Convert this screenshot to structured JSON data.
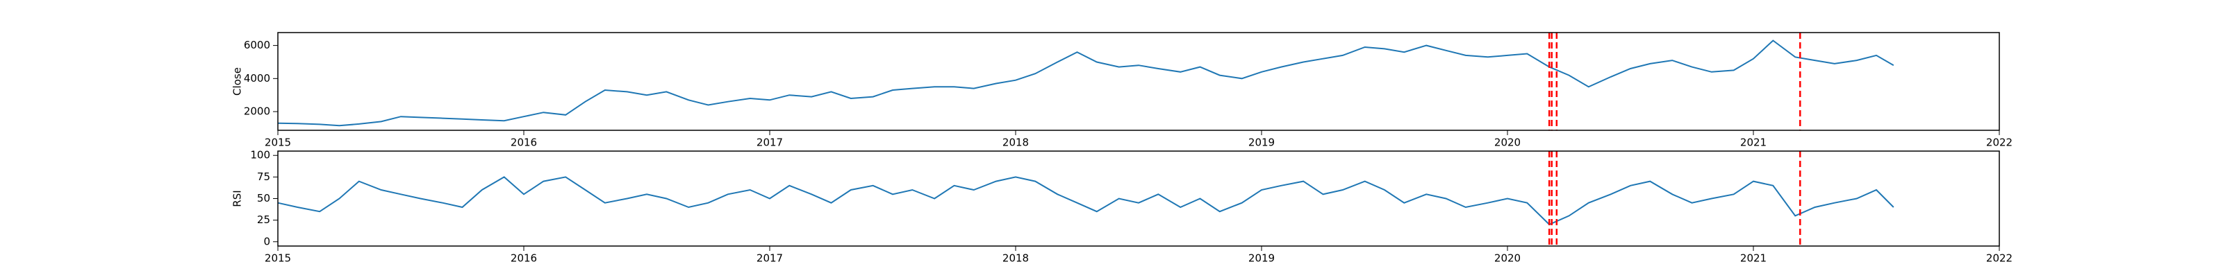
{
  "chart_data": [
    {
      "type": "line",
      "ylabel": "Close",
      "line_color": "#1f77b4",
      "x": [
        2015.0,
        2015.08,
        2015.17,
        2015.25,
        2015.33,
        2015.42,
        2015.5,
        2015.58,
        2015.67,
        2015.75,
        2015.83,
        2015.92,
        2016.0,
        2016.08,
        2016.17,
        2016.25,
        2016.33,
        2016.42,
        2016.5,
        2016.58,
        2016.67,
        2016.75,
        2016.83,
        2016.92,
        2017.0,
        2017.08,
        2017.17,
        2017.25,
        2017.33,
        2017.42,
        2017.5,
        2017.58,
        2017.67,
        2017.75,
        2017.83,
        2017.92,
        2018.0,
        2018.08,
        2018.17,
        2018.25,
        2018.33,
        2018.42,
        2018.5,
        2018.58,
        2018.67,
        2018.75,
        2018.83,
        2018.92,
        2019.0,
        2019.08,
        2019.17,
        2019.25,
        2019.33,
        2019.42,
        2019.5,
        2019.58,
        2019.67,
        2019.75,
        2019.83,
        2019.92,
        2020.0,
        2020.08,
        2020.17,
        2020.25,
        2020.33,
        2020.42,
        2020.5,
        2020.58,
        2020.67,
        2020.75,
        2020.83,
        2020.92,
        2021.0,
        2021.08,
        2021.17,
        2021.25,
        2021.33,
        2021.42,
        2021.5,
        2021.57
      ],
      "values": [
        1300,
        1280,
        1230,
        1150,
        1250,
        1400,
        1700,
        1650,
        1600,
        1550,
        1500,
        1450,
        1700,
        1950,
        1800,
        2600,
        3300,
        3200,
        3000,
        3200,
        2700,
        2400,
        2600,
        2800,
        2700,
        3000,
        2900,
        3200,
        2800,
        2900,
        3300,
        3400,
        3500,
        3500,
        3400,
        3700,
        3900,
        4300,
        5000,
        5600,
        5000,
        4700,
        4800,
        4600,
        4400,
        4700,
        4200,
        4000,
        4400,
        4700,
        5000,
        5200,
        5400,
        5900,
        5800,
        5600,
        6000,
        5700,
        5400,
        5300,
        5400,
        5500,
        4700,
        4200,
        3500,
        4100,
        4600,
        4900,
        5100,
        4700,
        4400,
        4500,
        5200,
        6300,
        5300,
        5100,
        4900,
        5100,
        5400,
        4800
      ],
      "xlim": [
        2015,
        2022
      ],
      "xticks": [
        2015,
        2016,
        2017,
        2018,
        2019,
        2020,
        2021,
        2022
      ],
      "ylim": [
        870,
        6780
      ],
      "yticks": [
        2000,
        4000,
        6000
      ],
      "vlines": [
        2020.17,
        2020.18,
        2020.2,
        2021.19
      ],
      "vline_color": "#ff0000"
    },
    {
      "type": "line",
      "ylabel": "RSI",
      "line_color": "#1f77b4",
      "x": [
        2015.0,
        2015.08,
        2015.17,
        2015.25,
        2015.33,
        2015.42,
        2015.5,
        2015.58,
        2015.67,
        2015.75,
        2015.83,
        2015.92,
        2016.0,
        2016.08,
        2016.17,
        2016.25,
        2016.33,
        2016.42,
        2016.5,
        2016.58,
        2016.67,
        2016.75,
        2016.83,
        2016.92,
        2017.0,
        2017.08,
        2017.17,
        2017.25,
        2017.33,
        2017.42,
        2017.5,
        2017.58,
        2017.67,
        2017.75,
        2017.83,
        2017.92,
        2018.0,
        2018.08,
        2018.17,
        2018.25,
        2018.33,
        2018.42,
        2018.5,
        2018.58,
        2018.67,
        2018.75,
        2018.83,
        2018.92,
        2019.0,
        2019.08,
        2019.17,
        2019.25,
        2019.33,
        2019.42,
        2019.5,
        2019.58,
        2019.67,
        2019.75,
        2019.83,
        2019.92,
        2020.0,
        2020.08,
        2020.17,
        2020.25,
        2020.33,
        2020.42,
        2020.5,
        2020.58,
        2020.67,
        2020.75,
        2020.83,
        2020.92,
        2021.0,
        2021.08,
        2021.17,
        2021.25,
        2021.33,
        2021.42,
        2021.5,
        2021.57
      ],
      "values": [
        45,
        40,
        35,
        50,
        70,
        60,
        55,
        50,
        45,
        40,
        60,
        75,
        55,
        70,
        75,
        60,
        45,
        50,
        55,
        50,
        40,
        45,
        55,
        60,
        50,
        65,
        55,
        45,
        60,
        65,
        55,
        60,
        50,
        65,
        60,
        70,
        75,
        70,
        55,
        45,
        35,
        50,
        45,
        55,
        40,
        50,
        35,
        45,
        60,
        65,
        70,
        55,
        60,
        70,
        60,
        45,
        55,
        50,
        40,
        45,
        50,
        45,
        20,
        30,
        45,
        55,
        65,
        70,
        55,
        45,
        50,
        55,
        70,
        65,
        30,
        40,
        45,
        50,
        60,
        40
      ],
      "xlim": [
        2015,
        2022
      ],
      "xticks": [
        2015,
        2016,
        2017,
        2018,
        2019,
        2020,
        2021,
        2022
      ],
      "ylim": [
        -5,
        105
      ],
      "yticks": [
        0,
        25,
        50,
        75,
        100
      ],
      "vlines": [
        2020.17,
        2020.18,
        2020.2,
        2021.19
      ],
      "vline_color": "#ff0000"
    }
  ]
}
